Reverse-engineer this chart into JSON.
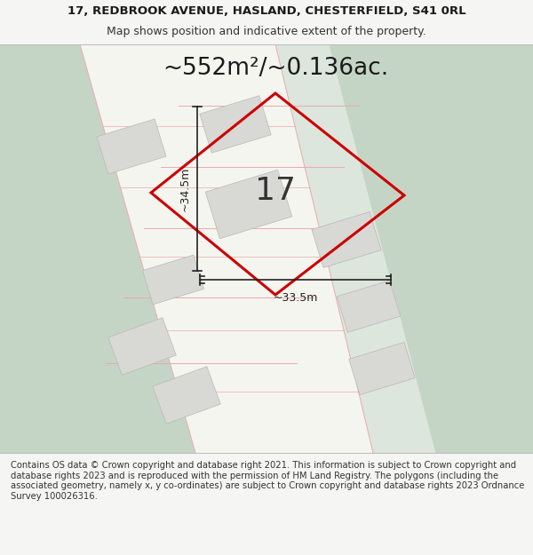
{
  "title_line1": "17, REDBROOK AVENUE, HASLAND, CHESTERFIELD, S41 0RL",
  "title_line2": "Map shows position and indicative extent of the property.",
  "area_label": "~552m²/~0.136ac.",
  "property_number": "17",
  "dim_vertical": "~34.5m",
  "dim_horizontal": "~33.5m",
  "footer": "Contains OS data © Crown copyright and database right 2021. This information is subject to Crown copyright and database rights 2023 and is reproduced with the permission of HM Land Registry. The polygons (including the associated geometry, namely x, y co-ordinates) are subject to Crown copyright and database rights 2023 Ordnance Survey 100026316.",
  "bg_color": "#f5f5f3",
  "map_bg": "#f0f0eb",
  "green_color": "#c5d5c5",
  "boundary_color": "#e8aaaa",
  "bldg_fill": "#d8d8d4",
  "bldg_edge": "#b8b8b4",
  "highlight_color": "#cc0000",
  "title_fontsize": 9.5,
  "subtitle_fontsize": 9,
  "footer_fontsize": 7.2,
  "area_fontsize": 19,
  "number_fontsize": 26,
  "dim_fontsize": 9
}
